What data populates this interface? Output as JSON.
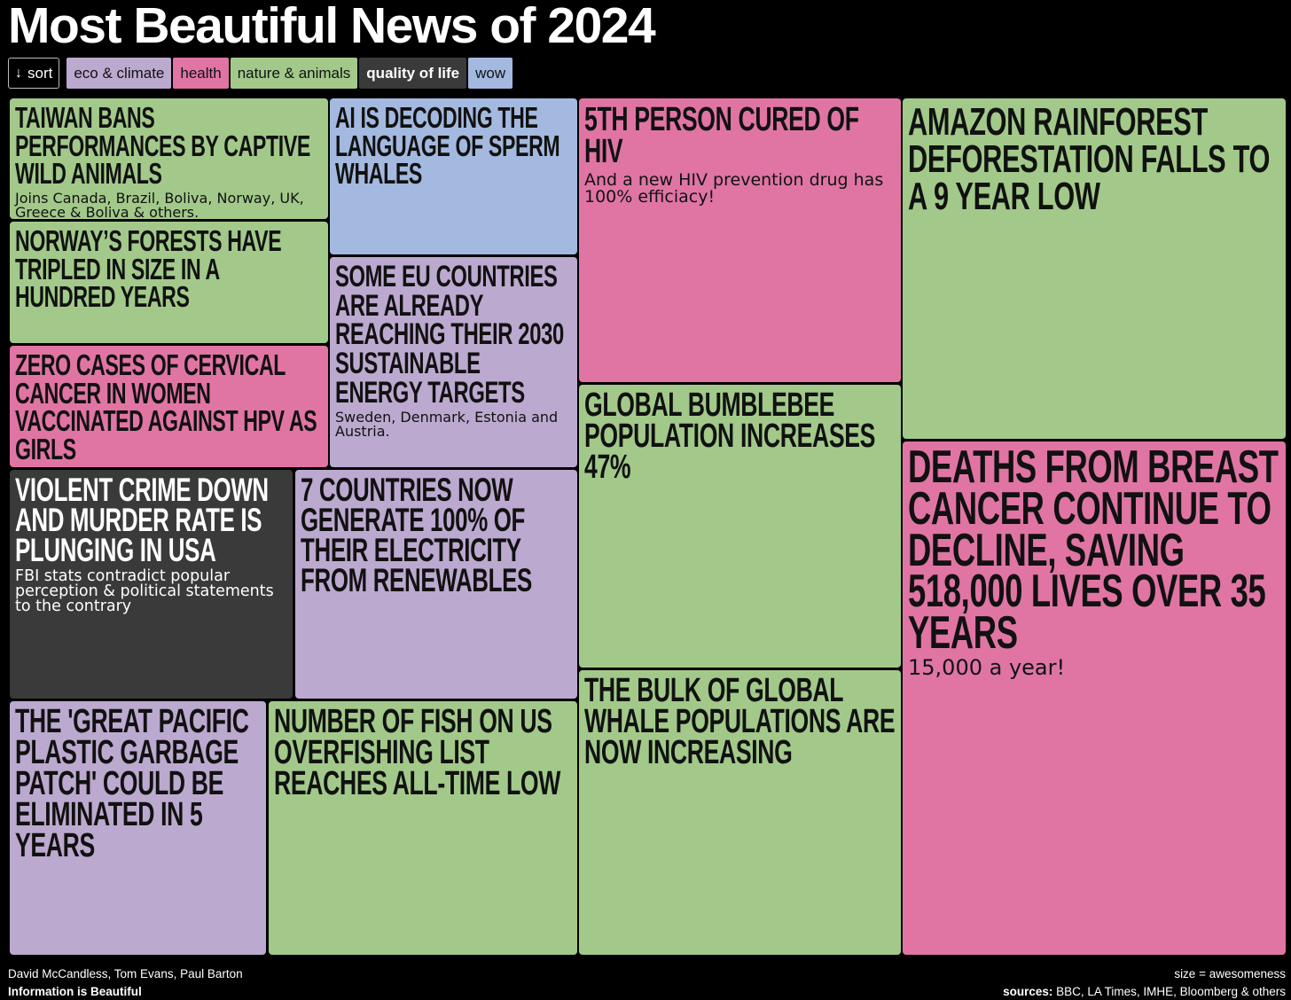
{
  "title": "Most Beautiful News of 2024",
  "filters": {
    "sort_label": "sort",
    "categories": [
      {
        "label": "eco & climate",
        "color": "#bca9cf"
      },
      {
        "label": "health",
        "color": "#e075a4"
      },
      {
        "label": "nature & animals",
        "color": "#a2c98a"
      },
      {
        "label": "quality of life",
        "color": "#3a3a3a"
      },
      {
        "label": "wow",
        "color": "#a3b9df"
      }
    ]
  },
  "chart_data": {
    "type": "treemap",
    "size_encoding": "awesomeness",
    "items": [
      {
        "headline": "Taiwan bans performances by captive wild animals",
        "sub": "Joins Canada, Brazil, Boliva, Norway, UK, Greece & Boliva & others.",
        "category": "nature & animals"
      },
      {
        "headline": "AI is decoding the language of sperm whales",
        "sub": "",
        "category": "wow"
      },
      {
        "headline": "5th person cured of HIV",
        "sub": "And a new HIV prevention drug has 100% efficiacy!",
        "category": "health"
      },
      {
        "headline": "Amazon rainforest deforestation falls to a 9 year low",
        "sub": "",
        "category": "nature & animals"
      },
      {
        "headline": "Norway’s forests have tripled in size in a hundred years",
        "sub": "",
        "category": "nature & animals"
      },
      {
        "headline": "Some EU countries are already reaching their 2030 sustainable energy targets",
        "sub": "Sweden, Denmark, Estonia and Austria.",
        "category": "eco & climate"
      },
      {
        "headline": "Zero cases of cervical cancer in women vaccinated against HPV as girls",
        "sub": "",
        "category": "health"
      },
      {
        "headline": "Global bumblebee population increases 47%",
        "sub": "",
        "category": "nature & animals"
      },
      {
        "headline": "Deaths from breast cancer continue to decline, saving 518,000 lives over 35 years",
        "sub": "15,000 a year!",
        "category": "health"
      },
      {
        "headline": "Violent crime down and murder rate is plunging in USA",
        "sub": "FBI stats contradict popular perception & political statements to the contrary",
        "category": "quality of life"
      },
      {
        "headline": "7 countries now generate 100% of their electricity from renewables",
        "sub": "",
        "category": "eco & climate"
      },
      {
        "headline": "The bulk of global whale populations are now increasing",
        "sub": "",
        "category": "nature & animals"
      },
      {
        "headline": "The 'Great Pacific Plastic Garbage Patch' could be eliminated in 5 years",
        "sub": "",
        "category": "eco & climate"
      },
      {
        "headline": "Number of fish on US overfishing list reaches all-time low",
        "sub": "",
        "category": "nature & animals"
      }
    ]
  },
  "footer": {
    "authors": "David McCandless, Tom Evans, Paul Barton",
    "brand": "Information is Beautiful",
    "size_note": "size = awesomeness",
    "sources_label": "sources:",
    "sources": "BBC, LA Times, IMHE, Bloomberg & others"
  }
}
